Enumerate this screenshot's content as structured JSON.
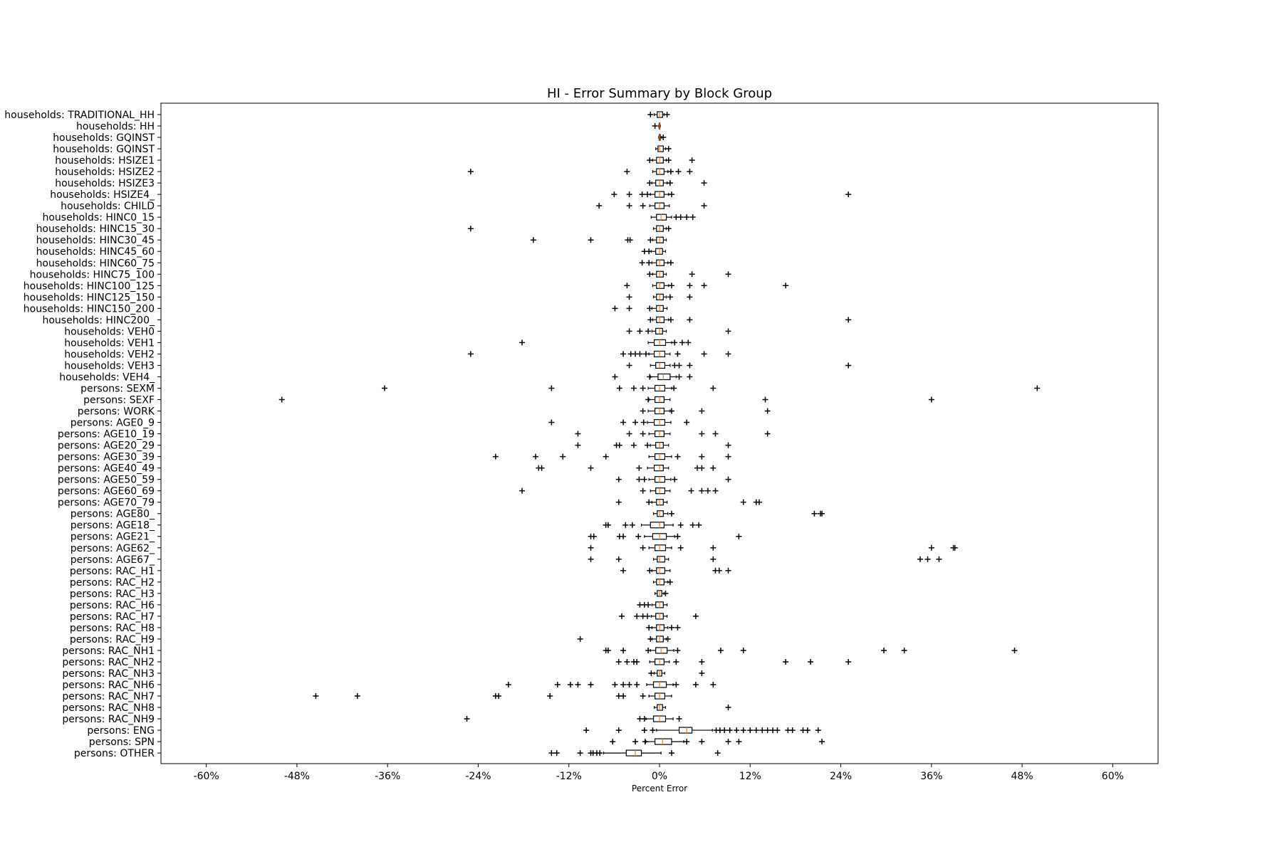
{
  "chart_data": {
    "type": "boxplot",
    "orientation": "horizontal",
    "title": "HI - Error Summary by Block Group",
    "xlabel": "Percent Error",
    "xlim": [
      -66,
      66
    ],
    "xticks": [
      -60,
      -48,
      -36,
      -24,
      -12,
      0,
      12,
      24,
      36,
      48,
      60
    ],
    "xtick_labels": [
      "-60%",
      "-48%",
      "-36%",
      "-24%",
      "-12%",
      "0%",
      "12%",
      "24%",
      "36%",
      "48%",
      "60%"
    ],
    "colors": {
      "box": "#000000",
      "median": "#ff7f0e",
      "flier": "#000000"
    },
    "series": [
      {
        "name": "households: TRADITIONAL_HH",
        "q1": -0.3,
        "median": 0.0,
        "q3": 0.4,
        "whisker_low": -0.7,
        "whisker_high": 0.6,
        "fliers": [
          -1.2,
          1.0
        ]
      },
      {
        "name": "households: HH",
        "q1": -0.05,
        "median": 0.0,
        "q3": 0.05,
        "whisker_low": -0.1,
        "whisker_high": 0.1,
        "fliers": [
          -0.6
        ]
      },
      {
        "name": "households: GQINST",
        "q1": -0.05,
        "median": 0.0,
        "q3": 0.1,
        "whisker_low": -0.1,
        "whisker_high": 0.3,
        "fliers": [
          0.5
        ]
      },
      {
        "name": "households: GQINST",
        "q1": -0.2,
        "median": 0.0,
        "q3": 0.5,
        "whisker_low": -0.5,
        "whisker_high": 0.8,
        "fliers": [
          1.2
        ]
      },
      {
        "name": "households: HSIZE1",
        "q1": -0.4,
        "median": 0.0,
        "q3": 0.5,
        "whisker_low": -0.9,
        "whisker_high": 0.9,
        "fliers": [
          -1.3,
          1.2,
          4.3
        ]
      },
      {
        "name": "households: HSIZE2",
        "q1": -0.4,
        "median": 0.0,
        "q3": 0.6,
        "whisker_low": -0.9,
        "whisker_high": 1.1,
        "fliers": [
          -25,
          -4.3,
          1.5,
          2.5,
          4.0
        ]
      },
      {
        "name": "households: HSIZE3",
        "q1": -0.5,
        "median": 0.0,
        "q3": 0.5,
        "whisker_low": -1.0,
        "whisker_high": 1.0,
        "fliers": [
          -1.3,
          1.4,
          5.9
        ]
      },
      {
        "name": "households: HSIZE4_",
        "q1": -0.6,
        "median": 0.0,
        "q3": 0.6,
        "whisker_low": -1.2,
        "whisker_high": 1.2,
        "fliers": [
          -6.0,
          -4.0,
          -2.3,
          -1.6,
          1.6,
          25
        ]
      },
      {
        "name": "households: CHILD",
        "q1": -0.6,
        "median": 0.0,
        "q3": 0.6,
        "whisker_low": -1.3,
        "whisker_high": 1.3,
        "fliers": [
          -8.0,
          -4.0,
          -2.2,
          5.9
        ]
      },
      {
        "name": "households: HINC0_15",
        "q1": -0.4,
        "median": 0.2,
        "q3": 0.9,
        "whisker_low": -1.1,
        "whisker_high": 1.6,
        "fliers": [
          2.2,
          2.8,
          3.6,
          4.4
        ]
      },
      {
        "name": "households: HINC15_30",
        "q1": -0.4,
        "median": 0.0,
        "q3": 0.5,
        "whisker_low": -0.8,
        "whisker_high": 0.9,
        "fliers": [
          -25,
          1.2
        ]
      },
      {
        "name": "households: HINC30_45",
        "q1": -0.4,
        "median": 0.0,
        "q3": 0.5,
        "whisker_low": -0.9,
        "whisker_high": 0.9,
        "fliers": [
          -16.7,
          -9.1,
          -4.2,
          -3.9,
          -1.2
        ]
      },
      {
        "name": "households: HINC45_60",
        "q1": -0.5,
        "median": 0.0,
        "q3": 0.4,
        "whisker_low": -1.1,
        "whisker_high": 0.8,
        "fliers": [
          -2.0,
          -1.4
        ]
      },
      {
        "name": "households: HINC60_75",
        "q1": -0.4,
        "median": 0.0,
        "q3": 0.6,
        "whisker_low": -1.0,
        "whisker_high": 1.1,
        "fliers": [
          -2.3,
          -1.4,
          1.5
        ]
      },
      {
        "name": "households: HINC75_100",
        "q1": -0.4,
        "median": 0.0,
        "q3": 0.5,
        "whisker_low": -0.9,
        "whisker_high": 0.9,
        "fliers": [
          -1.3,
          4.3,
          9.1
        ]
      },
      {
        "name": "households: HINC100_125",
        "q1": -0.4,
        "median": 0.0,
        "q3": 0.6,
        "whisker_low": -0.9,
        "whisker_high": 1.2,
        "fliers": [
          -4.3,
          1.6,
          4.0,
          5.9,
          16.7
        ]
      },
      {
        "name": "households: HINC125_150",
        "q1": -0.4,
        "median": 0.0,
        "q3": 0.5,
        "whisker_low": -0.8,
        "whisker_high": 0.9,
        "fliers": [
          -4.0,
          1.4,
          4.0
        ]
      },
      {
        "name": "households: HINC150_200",
        "q1": -0.4,
        "median": 0.0,
        "q3": 0.5,
        "whisker_low": -1.0,
        "whisker_high": 1.0,
        "fliers": [
          -5.9,
          -4.0,
          -1.3
        ]
      },
      {
        "name": "households: HINC200_",
        "q1": -0.4,
        "median": 0.0,
        "q3": 0.6,
        "whisker_low": -0.9,
        "whisker_high": 1.2,
        "fliers": [
          -1.2,
          1.5,
          4.0,
          25
        ]
      },
      {
        "name": "households: VEH0",
        "q1": -0.5,
        "median": 0.0,
        "q3": 0.4,
        "whisker_low": -1.0,
        "whisker_high": 0.9,
        "fliers": [
          -4.0,
          -2.6,
          -1.5,
          9.1
        ]
      },
      {
        "name": "households: VEH1",
        "q1": -0.7,
        "median": 0.0,
        "q3": 0.8,
        "whisker_low": -1.5,
        "whisker_high": 1.6,
        "fliers": [
          -18.2,
          2.0,
          3.0,
          3.8
        ]
      },
      {
        "name": "households: VEH2",
        "q1": -0.7,
        "median": 0.0,
        "q3": 0.7,
        "whisker_low": -1.4,
        "whisker_high": 1.4,
        "fliers": [
          -25,
          -4.8,
          -3.8,
          -3.2,
          -2.6,
          -1.8,
          2.4,
          5.9,
          9.1
        ]
      },
      {
        "name": "households: VEH3",
        "q1": -0.5,
        "median": 0.0,
        "q3": 0.7,
        "whisker_low": -1.2,
        "whisker_high": 1.4,
        "fliers": [
          -4.0,
          2.0,
          2.6,
          4.0,
          25
        ]
      },
      {
        "name": "households: VEH4_",
        "q1": -0.2,
        "median": 0.5,
        "q3": 1.4,
        "whisker_low": -1.2,
        "whisker_high": 2.2,
        "fliers": [
          -5.9,
          -1.3,
          2.6,
          4.0
        ]
      },
      {
        "name": "persons: SEXM",
        "q1": -0.6,
        "median": 0.0,
        "q3": 0.7,
        "whisker_low": -1.5,
        "whisker_high": 1.6,
        "fliers": [
          -36.4,
          -14.3,
          -5.3,
          -3.4,
          -2.2,
          1.9,
          7.1,
          50
        ]
      },
      {
        "name": "persons: SEXF",
        "q1": -0.6,
        "median": 0.0,
        "q3": 0.6,
        "whisker_low": -1.4,
        "whisker_high": 1.4,
        "fliers": [
          -50,
          -1.5,
          14.0,
          36.0
        ]
      },
      {
        "name": "persons: WORK",
        "q1": -0.6,
        "median": 0.0,
        "q3": 0.6,
        "whisker_low": -1.5,
        "whisker_high": 1.4,
        "fliers": [
          -2.2,
          1.6,
          5.6,
          14.3
        ]
      },
      {
        "name": "persons: AGE0_9",
        "q1": -0.7,
        "median": 0.0,
        "q3": 0.7,
        "whisker_low": -1.6,
        "whisker_high": 1.5,
        "fliers": [
          -14.3,
          -4.8,
          -3.2,
          -2.1,
          3.6
        ]
      },
      {
        "name": "persons: AGE10_19",
        "q1": -0.6,
        "median": 0.0,
        "q3": 0.6,
        "whisker_low": -1.4,
        "whisker_high": 1.4,
        "fliers": [
          -10.8,
          -4.0,
          -2.2,
          5.6,
          7.4,
          14.3
        ]
      },
      {
        "name": "persons: AGE20_29",
        "q1": -0.5,
        "median": 0.0,
        "q3": 0.5,
        "whisker_low": -1.2,
        "whisker_high": 1.2,
        "fliers": [
          -10.8,
          -5.7,
          -5.3,
          -3.4,
          -1.6,
          9.1
        ]
      },
      {
        "name": "persons: AGE30_39",
        "q1": -0.6,
        "median": 0.0,
        "q3": 0.7,
        "whisker_low": -1.4,
        "whisker_high": 1.6,
        "fliers": [
          -21.7,
          -16.4,
          -12.8,
          -7.1,
          2.4,
          5.6,
          9.1
        ]
      },
      {
        "name": "persons: AGE40_49",
        "q1": -0.7,
        "median": 0.0,
        "q3": 0.5,
        "whisker_low": -1.6,
        "whisker_high": 1.2,
        "fliers": [
          -16.0,
          -15.6,
          -9.1,
          -2.7,
          5.0,
          5.6,
          7.1
        ]
      },
      {
        "name": "persons: AGE50_59",
        "q1": -0.6,
        "median": 0.0,
        "q3": 0.7,
        "whisker_low": -1.4,
        "whisker_high": 1.5,
        "fliers": [
          -5.4,
          -2.7,
          -2.0,
          2.0,
          9.1
        ]
      },
      {
        "name": "persons: AGE60_69",
        "q1": -0.5,
        "median": 0.0,
        "q3": 0.7,
        "whisker_low": -1.2,
        "whisker_high": 1.4,
        "fliers": [
          -18.2,
          -2.2,
          4.2,
          5.6,
          6.4,
          7.4
        ]
      },
      {
        "name": "persons: AGE70_79",
        "q1": -0.4,
        "median": 0.0,
        "q3": 0.5,
        "whisker_low": -1.0,
        "whisker_high": 1.0,
        "fliers": [
          -5.4,
          -1.4,
          11.1,
          12.8,
          13.2
        ]
      },
      {
        "name": "persons: AGE80_",
        "q1": -0.3,
        "median": 0.0,
        "q3": 0.5,
        "whisker_low": -0.8,
        "whisker_high": 1.1,
        "fliers": [
          1.6,
          20.5,
          21.3,
          21.5
        ]
      },
      {
        "name": "persons: AGE18_",
        "q1": -1.2,
        "median": 0.0,
        "q3": 0.6,
        "whisker_low": -2.4,
        "whisker_high": 1.8,
        "fliers": [
          -7.1,
          -6.8,
          -4.5,
          -3.6,
          2.8,
          4.4,
          5.2
        ]
      },
      {
        "name": "persons: AGE21_",
        "q1": -0.9,
        "median": 0.0,
        "q3": 0.9,
        "whisker_low": -2.0,
        "whisker_high": 2.0,
        "fliers": [
          -9.1,
          -8.7,
          -5.3,
          -4.8,
          -2.8,
          2.4,
          10.5
        ]
      },
      {
        "name": "persons: AGE62_",
        "q1": -0.6,
        "median": 0.0,
        "q3": 0.8,
        "whisker_low": -1.4,
        "whisker_high": 1.6,
        "fliers": [
          -9.1,
          -2.2,
          2.8,
          7.1,
          36.0,
          38.9,
          39.1
        ]
      },
      {
        "name": "persons: AGE67_",
        "q1": -0.3,
        "median": 0.0,
        "q3": 0.7,
        "whisker_low": -0.8,
        "whisker_high": 1.2,
        "fliers": [
          -9.1,
          -5.4,
          7.1,
          34.5,
          35.5,
          37.0
        ]
      },
      {
        "name": "persons: RAC_H1",
        "q1": -0.4,
        "median": 0.0,
        "q3": 0.7,
        "whisker_low": -1.0,
        "whisker_high": 1.4,
        "fliers": [
          -4.8,
          -1.3,
          7.4,
          7.9,
          9.1
        ]
      },
      {
        "name": "persons: RAC_H2",
        "q1": -0.4,
        "median": 0.0,
        "q3": 0.6,
        "whisker_low": -0.8,
        "whisker_high": 1.1,
        "fliers": [
          1.4
        ]
      },
      {
        "name": "persons: RAC_H3",
        "q1": -0.3,
        "median": 0.0,
        "q3": 0.3,
        "whisker_low": -0.6,
        "whisker_high": 0.6,
        "fliers": [
          0.8
        ]
      },
      {
        "name": "persons: RAC_H6",
        "q1": -0.5,
        "median": 0.0,
        "q3": 0.5,
        "whisker_low": -1.0,
        "whisker_high": 1.0,
        "fliers": [
          -2.6,
          -2.0,
          -1.5
        ]
      },
      {
        "name": "persons: RAC_H7",
        "q1": -0.5,
        "median": 0.0,
        "q3": 0.5,
        "whisker_low": -1.1,
        "whisker_high": 1.0,
        "fliers": [
          -5.0,
          -3.0,
          -2.2,
          -1.6,
          4.8
        ]
      },
      {
        "name": "persons: RAC_H8",
        "q1": -0.4,
        "median": 0.0,
        "q3": 0.6,
        "whisker_low": -1.0,
        "whisker_high": 1.1,
        "fliers": [
          -1.4,
          1.6,
          2.4
        ]
      },
      {
        "name": "persons: RAC_H9",
        "q1": -0.4,
        "median": 0.0,
        "q3": 0.5,
        "whisker_low": -1.0,
        "whisker_high": 0.9,
        "fliers": [
          -10.5,
          -1.2,
          1.1
        ]
      },
      {
        "name": "persons: RAC_NH1",
        "q1": -0.5,
        "median": 0.2,
        "q3": 1.0,
        "whisker_low": -1.2,
        "whisker_high": 1.9,
        "fliers": [
          -7.1,
          -6.8,
          -4.8,
          -1.5,
          2.4,
          8.1,
          11.1,
          29.7,
          32.4,
          47.0
        ]
      },
      {
        "name": "persons: RAC_NH2",
        "q1": -0.6,
        "median": 0.0,
        "q3": 0.6,
        "whisker_low": -1.3,
        "whisker_high": 1.3,
        "fliers": [
          -5.4,
          -4.3,
          -3.4,
          -3.0,
          2.2,
          5.6,
          16.7,
          20.0,
          25.0
        ]
      },
      {
        "name": "persons: RAC_NH3",
        "q1": -0.3,
        "median": 0.0,
        "q3": 0.3,
        "whisker_low": -0.7,
        "whisker_high": 0.7,
        "fliers": [
          -1.1,
          5.6
        ]
      },
      {
        "name": "persons: RAC_NH6",
        "q1": -0.8,
        "median": 0.0,
        "q3": 0.9,
        "whisker_low": -1.7,
        "whisker_high": 1.8,
        "fliers": [
          -20.0,
          -13.5,
          -11.8,
          -10.8,
          -9.1,
          -5.9,
          -4.8,
          -4.0,
          -3.0,
          2.2,
          4.8,
          7.1
        ]
      },
      {
        "name": "persons: RAC_NH7",
        "q1": -0.6,
        "median": 0.0,
        "q3": 0.7,
        "whisker_low": -1.4,
        "whisker_high": 1.6,
        "fliers": [
          -45.5,
          -40.0,
          -21.7,
          -21.3,
          -14.5,
          -5.4,
          -4.8,
          -2.2
        ]
      },
      {
        "name": "persons: RAC_NH8",
        "q1": -0.3,
        "median": 0.0,
        "q3": 0.4,
        "whisker_low": -0.7,
        "whisker_high": 0.8,
        "fliers": [
          9.1
        ]
      },
      {
        "name": "persons: RAC_NH9",
        "q1": -0.8,
        "median": 0.0,
        "q3": 0.8,
        "whisker_low": -1.8,
        "whisker_high": 1.8,
        "fliers": [
          -25.5,
          -2.6,
          -2.0,
          2.6
        ]
      },
      {
        "name": "persons: ENG",
        "q1": 2.6,
        "median": 3.6,
        "q3": 4.3,
        "whisker_low": -0.4,
        "whisker_high": 7.0,
        "fliers": [
          -9.7,
          -5.4,
          -2.0,
          -0.9,
          7.5,
          8.0,
          8.6,
          9.3,
          10.2,
          11.1,
          12.0,
          12.8,
          13.6,
          14.3,
          15.0,
          15.6,
          17.0,
          17.6,
          19.0,
          19.6,
          21.0
        ]
      },
      {
        "name": "persons: SPN",
        "q1": -0.6,
        "median": 0.4,
        "q3": 1.6,
        "whisker_low": -1.8,
        "whisker_high": 3.2,
        "fliers": [
          -6.2,
          -3.2,
          -1.9,
          3.6,
          5.6,
          9.1,
          10.5,
          21.5
        ]
      },
      {
        "name": "persons: OTHER",
        "q1": -4.4,
        "median": -3.2,
        "q3": -2.4,
        "whisker_low": -7.4,
        "whisker_high": 0.2,
        "fliers": [
          -14.3,
          -13.6,
          -10.5,
          -9.1,
          -8.8,
          -8.3,
          -7.9,
          1.6,
          7.7
        ]
      }
    ]
  }
}
